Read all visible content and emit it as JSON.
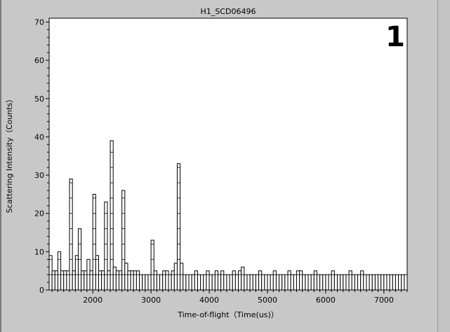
{
  "chart_data": {
    "type": "bar",
    "title": "H1_SCD06496",
    "xlabel": "Time-of-flight（Time(us)）",
    "ylabel": "Scattering Intensity（Counts）",
    "xlim": [
      1250,
      7400
    ],
    "ylim": [
      0,
      71
    ],
    "xticks": [
      2000,
      3000,
      4000,
      5000,
      6000,
      7000
    ],
    "yticks": [
      0,
      10,
      20,
      30,
      40,
      50,
      60,
      70
    ],
    "grid": false,
    "legend": "none",
    "bin_width": 50,
    "x": [
      1250,
      1300,
      1350,
      1400,
      1450,
      1500,
      1550,
      1600,
      1650,
      1700,
      1750,
      1800,
      1850,
      1900,
      1950,
      2000,
      2050,
      2100,
      2150,
      2200,
      2250,
      2300,
      2350,
      2400,
      2450,
      2500,
      2550,
      2600,
      2650,
      2700,
      2750,
      2800,
      2850,
      2900,
      2950,
      3000,
      3050,
      3100,
      3150,
      3200,
      3250,
      3300,
      3350,
      3400,
      3450,
      3500,
      3550,
      3600,
      3650,
      3700,
      3750,
      3800,
      3850,
      3900,
      3950,
      4000,
      4050,
      4100,
      4150,
      4200,
      4250,
      4300,
      4350,
      4400,
      4450,
      4500,
      4550,
      4600,
      4650,
      4700,
      4750,
      4800,
      4850,
      4900,
      4950,
      5000,
      5050,
      5100,
      5150,
      5200,
      5250,
      5300,
      5350,
      5400,
      5450,
      5500,
      5550,
      5600,
      5650,
      5700,
      5750,
      5800,
      5850,
      5900,
      5950,
      6000,
      6050,
      6100,
      6150,
      6200,
      6250,
      6300,
      6350,
      6400,
      6450,
      6500,
      6550,
      6600,
      6650,
      6700,
      6750,
      6800,
      6850,
      6900,
      6950,
      7000,
      7050,
      7100,
      7150,
      7200,
      7250,
      7300,
      7350
    ],
    "values": [
      9,
      5,
      5,
      10,
      5,
      5,
      5,
      29,
      5,
      9,
      16,
      5,
      5,
      8,
      5,
      25,
      9,
      5,
      5,
      23,
      5,
      39,
      6,
      5,
      5,
      26,
      7,
      5,
      5,
      5,
      5,
      4,
      4,
      4,
      4,
      13,
      5,
      4,
      4,
      5,
      5,
      4,
      5,
      7,
      33,
      7,
      4,
      4,
      4,
      4,
      5,
      4,
      4,
      4,
      5,
      4,
      4,
      5,
      4,
      5,
      4,
      4,
      4,
      5,
      4,
      5,
      6,
      4,
      4,
      4,
      4,
      4,
      5,
      4,
      4,
      4,
      4,
      5,
      4,
      4,
      4,
      4,
      5,
      4,
      4,
      5,
      5,
      4,
      4,
      4,
      4,
      5,
      4,
      4,
      4,
      4,
      4,
      5,
      4,
      4,
      4,
      4,
      4,
      5,
      4,
      4,
      4,
      5,
      4,
      4,
      4,
      4,
      4,
      4,
      4,
      4,
      4,
      4,
      4,
      4,
      4,
      4,
      4
    ]
  },
  "overlay": {
    "label": "1",
    "color": "#e00000"
  }
}
